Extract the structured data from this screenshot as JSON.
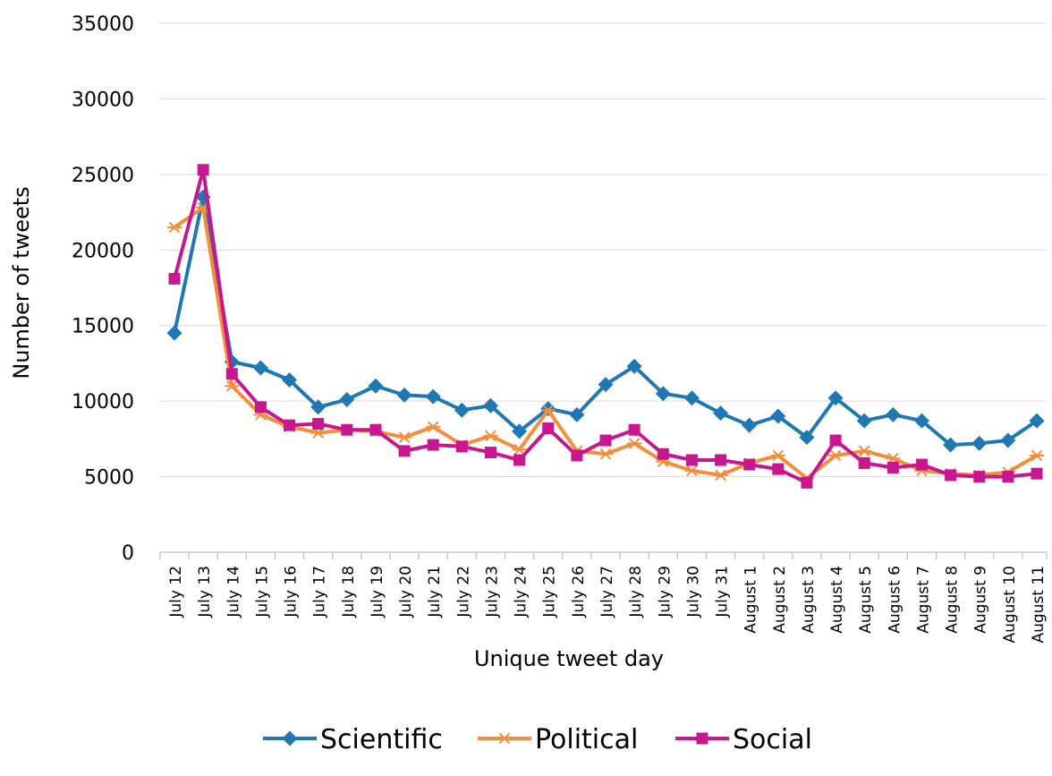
{
  "chart_data": {
    "type": "line",
    "title": "",
    "xlabel": "Unique tweet day",
    "ylabel": "Number of tweets",
    "ylim": [
      0,
      35000
    ],
    "yticks": [
      0,
      5000,
      10000,
      15000,
      20000,
      25000,
      30000,
      35000
    ],
    "grid": "horizontal",
    "legend_position": "bottom",
    "categories": [
      "July 12",
      "July 13",
      "July 14",
      "July 15",
      "July 16",
      "July 17",
      "July 18",
      "July 19",
      "July 20",
      "July 21",
      "July 22",
      "July 23",
      "July 24",
      "July 25",
      "July 26",
      "July 27",
      "July 28",
      "July 29",
      "July 30",
      "July 31",
      "August 1",
      "August 2",
      "August 3",
      "August 4",
      "August 5",
      "August 6",
      "August 7",
      "August 8",
      "August 9",
      "August 10",
      "August 11"
    ],
    "series": [
      {
        "name": "Scientific",
        "color": "#1f77b4",
        "marker": "diamond",
        "values": [
          14500,
          23500,
          12600,
          12200,
          11400,
          9600,
          10100,
          11000,
          10400,
          10300,
          9400,
          9700,
          8000,
          9500,
          9100,
          11100,
          12300,
          10500,
          10200,
          9200,
          8400,
          9000,
          7600,
          10200,
          8700,
          9100,
          8700,
          7100,
          7200,
          7400,
          8700
        ]
      },
      {
        "name": "Political",
        "color": "#f28e3c",
        "marker": "asterisk",
        "values": [
          21500,
          22800,
          11000,
          9100,
          8300,
          7900,
          8100,
          8000,
          7600,
          8300,
          7100,
          7700,
          6800,
          9400,
          6700,
          6500,
          7200,
          6000,
          5400,
          5100,
          5900,
          6400,
          4900,
          6400,
          6700,
          6200,
          5400,
          5200,
          5100,
          5300,
          6400
        ]
      },
      {
        "name": "Social",
        "color": "#c7168e",
        "marker": "square",
        "values": [
          18100,
          25300,
          11800,
          9600,
          8400,
          8500,
          8100,
          8100,
          6700,
          7100,
          7000,
          6600,
          6100,
          8200,
          6400,
          7400,
          8100,
          6500,
          6100,
          6100,
          5800,
          5500,
          4600,
          7400,
          5900,
          5600,
          5800,
          5100,
          5000,
          5000,
          5200
        ]
      }
    ]
  }
}
